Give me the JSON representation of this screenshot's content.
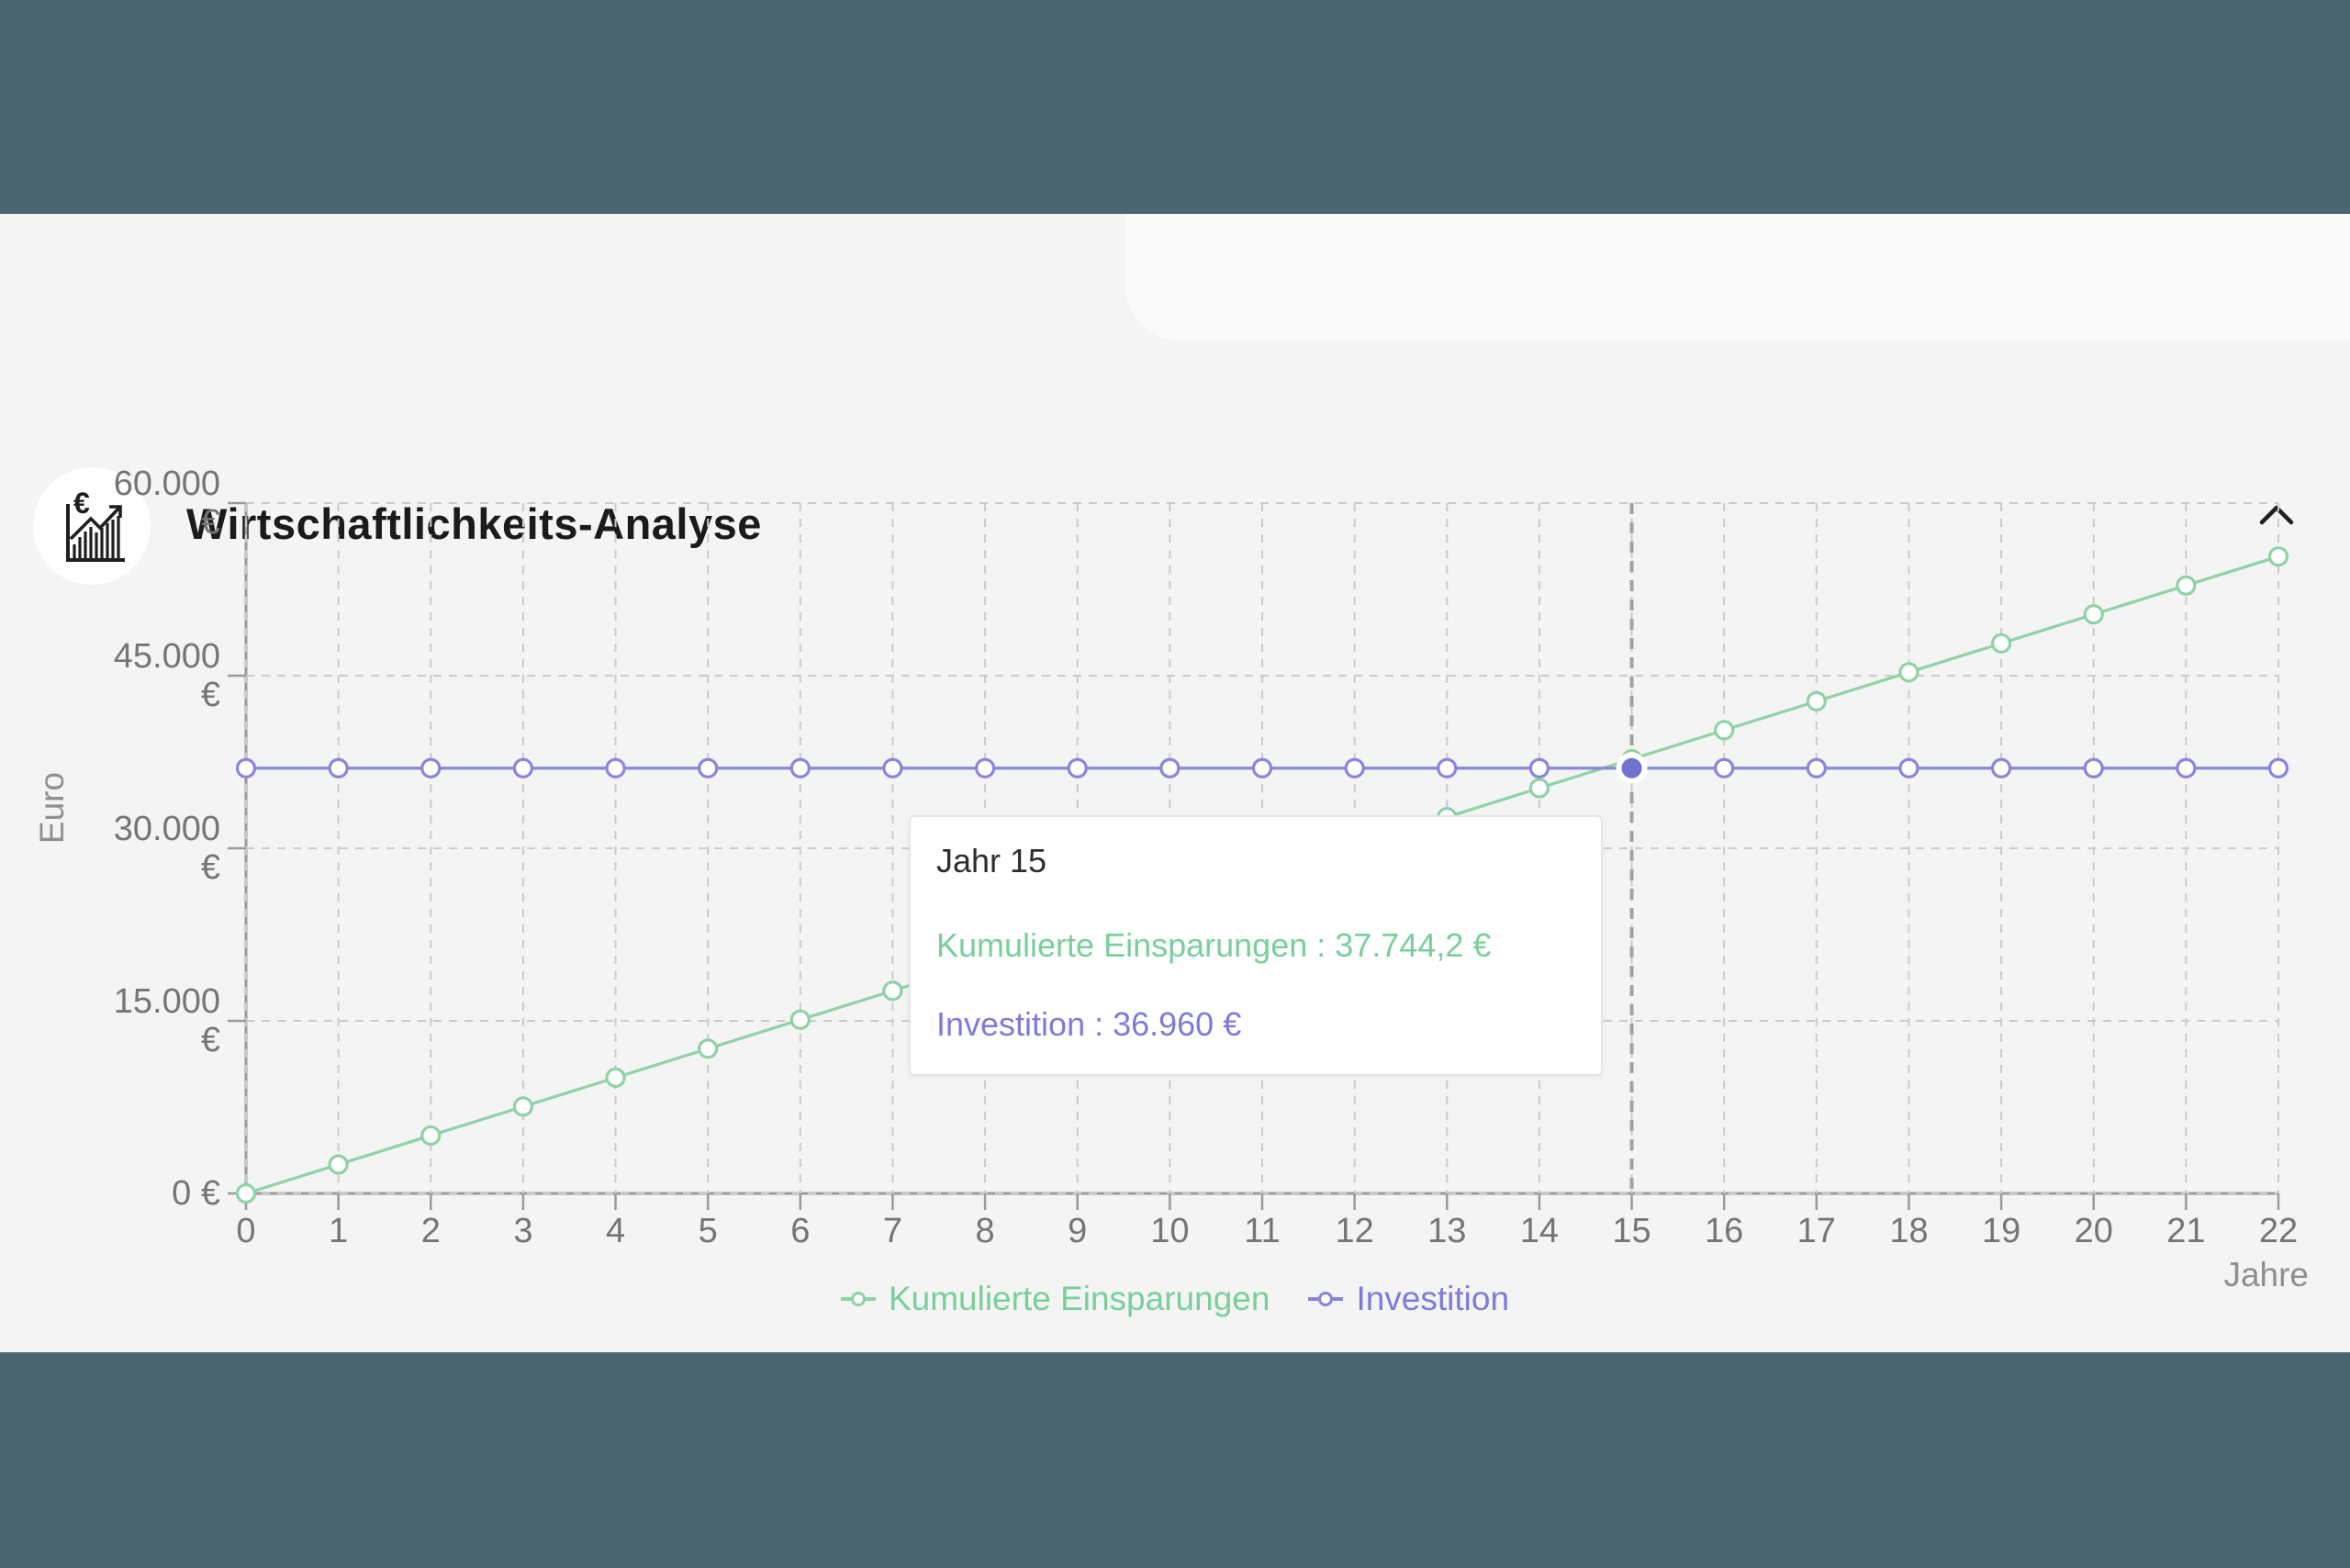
{
  "page": {
    "frame_color": "#4B6670",
    "background_color": "#f4f4f4"
  },
  "header": {
    "title": "Wirtschaftlichkeits-Analyse",
    "icon": "euro-chart-icon",
    "collapse_icon": "chevron-up-icon"
  },
  "chart_data": {
    "type": "line",
    "xlabel": "Jahre",
    "ylabel": "Euro",
    "categories": [
      0,
      1,
      2,
      3,
      4,
      5,
      6,
      7,
      8,
      9,
      10,
      11,
      12,
      13,
      14,
      15,
      16,
      17,
      18,
      19,
      20,
      21,
      22
    ],
    "series": [
      {
        "name": "Kumulierte Einsparungen",
        "color": "#8fd2a4",
        "text_color": "#79cf9a",
        "values": [
          0,
          2516.28,
          5032.56,
          7548.84,
          10065.12,
          12581.4,
          15097.68,
          17613.96,
          20130.24,
          22646.52,
          25162.8,
          27679.08,
          30195.36,
          32711.64,
          35227.92,
          37744.2,
          40260.48,
          42776.76,
          45293.04,
          47809.32,
          50325.6,
          52841.88,
          55358.16
        ]
      },
      {
        "name": "Investition",
        "color": "#8886dc",
        "text_color": "#7d7bda",
        "values": [
          36960,
          36960,
          36960,
          36960,
          36960,
          36960,
          36960,
          36960,
          36960,
          36960,
          36960,
          36960,
          36960,
          36960,
          36960,
          36960,
          36960,
          36960,
          36960,
          36960,
          36960,
          36960,
          36960
        ]
      }
    ],
    "ylim": [
      0,
      60000
    ],
    "y_ticks": [
      {
        "value": 0,
        "label": "0 €"
      },
      {
        "value": 15000,
        "label": "15.000\n€"
      },
      {
        "value": 30000,
        "label": "30.000\n€"
      },
      {
        "value": 45000,
        "label": "45.000\n€"
      },
      {
        "value": 60000,
        "label": "60.000\n€"
      }
    ],
    "grid": true,
    "legend_position": "bottom",
    "highlighted_year": 15,
    "emphasis_color": "#6f73ce"
  },
  "tooltip": {
    "title": "Jahr 15",
    "lines": [
      {
        "text": "Kumulierte Einsparungen : 37.744,2 €"
      },
      {
        "text": "Investition : 36.960 €"
      }
    ]
  },
  "style": {
    "grid_color": "#cbcbcb",
    "axis_color": "#9a9a9a",
    "crosshair_color": "#a3a3a3",
    "tick_text_color": "#757575",
    "axis_name_color": "#8f8f8f"
  }
}
